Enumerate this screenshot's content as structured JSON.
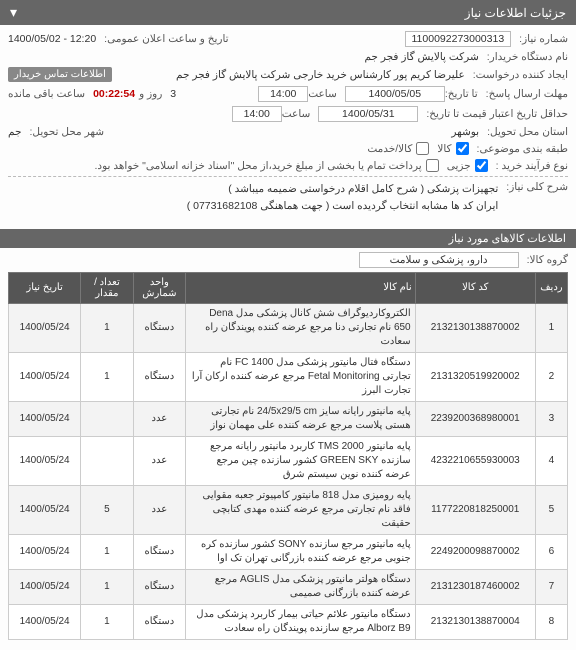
{
  "header": {
    "title": "جزئیات اطلاعات نیاز",
    "collapse_glyph": "▾"
  },
  "form": {
    "need_number_label": "شماره نیاز:",
    "need_number": "1100092273000313",
    "public_datetime_label": "تاریخ و ساعت اعلان عمومی:",
    "public_datetime": "1400/05/02 - 12:20",
    "buyer_label": "نام دستگاه خریدار:",
    "buyer": "شرکت پالایش گاز فجر جم",
    "requester_label": "ایجاد کننده درخواست:",
    "requester": "علیرضا کریم پور کارشناس خرید خارجی شرکت پالایش گاز فجر جم",
    "buyer_contact_badge": "اطلاعات تماس خریدار",
    "reply_deadline_label": "مهلت ارسال پاسخ:",
    "reply_deadline_date_label": "تا تاریخ:",
    "reply_deadline_date": "1400/05/05",
    "hour_label": "ساعت",
    "reply_deadline_hour": "14:00",
    "days_label": "روز و",
    "days": "3",
    "remain_label": "ساعت باقی مانده",
    "remain_timer": "00:22:54",
    "valid_min_label": "حداقل تاریخ اعتبار قیمت تا تاریخ:",
    "valid_min_date": "1400/05/31",
    "valid_min_hour": "14:00",
    "deliver_province_label": "استان محل تحویل:",
    "deliver_province": "بوشهر",
    "deliver_city_label": "شهر محل تحویل:",
    "deliver_city": "جم",
    "subject_label": "طبقه بندی موضوعی:",
    "subject_service_label": "کالا/خدمت",
    "subject_service_checked": false,
    "subject_goods_label": "کالا",
    "subject_goods_checked": true,
    "buy_type_label": "نوع فرآیند خرید :",
    "buy_type_partial_label": "پرداخت تمام یا بخشی از مبلغ خرید،از محل \"اسناد خزانه اسلامی\" خواهد بود.",
    "buy_type_partial_checked": false,
    "buy_type_partial2_label": "جزیی",
    "buy_type_partial2_checked": true,
    "desc_label": "شرح کلی نیاز:",
    "desc_line1": "تجهیزات پزشکی ( شرح کامل اقلام درخواستی ضمیمه میباشد )",
    "desc_line2": "ایران کد ها مشابه انتخاب گردیده است ( جهت هماهنگی  07731682108 )",
    "group_label": "گروه کالا:",
    "group_value": "دارو، پزشکی و سلامت"
  },
  "items_section_title": "اطلاعات کالاهای مورد نیاز",
  "table": {
    "columns": [
      "ردیف",
      "کد کالا",
      "نام کالا",
      "واحد شمارش",
      "تعداد / مقدار",
      "تاریخ نیاز"
    ],
    "rows": [
      {
        "idx": "1",
        "code": "2132130138870002",
        "name": "الکتروکاردیوگراف شش کانال پزشکی مدل Dena 650 نام تجارتی دنا مرجع عرضه کننده پویندگان راه سعادت",
        "unit": "دستگاه",
        "count": "1",
        "date": "1400/05/24"
      },
      {
        "idx": "2",
        "code": "2131320519920002",
        "name": "دستگاه فتال مانیتور پزشکی مدل FC 1400 نام تجارتی Fetal Monitoring مرجع عرضه کننده ارکان آرا تجارت البرز",
        "unit": "دستگاه",
        "count": "1",
        "date": "1400/05/24"
      },
      {
        "idx": "3",
        "code": "2239200368980001",
        "name": "پایه مانیتور رایانه سایز 24/5x29/5 cm نام تجارتی هستی پلاست مرجع عرضه کننده علی مهمان نواز",
        "unit": "عدد",
        "count": "",
        "date": "1400/05/24"
      },
      {
        "idx": "4",
        "code": "4232210655930003",
        "name": "پایه مانیتور TMS 2000 کاربرد مانیتور رایانه مرجع سازنده GREEN SKY کشور سازنده چین مرجع عرضه کننده نوین سیستم شرق",
        "unit": "عدد",
        "count": "",
        "date": "1400/05/24"
      },
      {
        "idx": "5",
        "code": "1177220818250001",
        "name": "پایه رومیزی مدل 818 مانیتور کامپیوتر جعبه مقوایی فاقد نام تجارتی مرجع عرضه کننده مهدی کتابچی حقیقت",
        "unit": "عدد",
        "count": "5",
        "date": "1400/05/24"
      },
      {
        "idx": "6",
        "code": "2249200098870002",
        "name": "پایه مانیتور مرجع سازنده SONY کشور سازنده کره جنوبی مرجع عرضه کننده بازرگانی تهران تک اوا",
        "unit": "دستگاه",
        "count": "1",
        "date": "1400/05/24"
      },
      {
        "idx": "7",
        "code": "2131230187460002",
        "name": "دستگاه هولتر مانیتور پزشکی مدل AGLIS مرجع عرضه کننده بازرگانی صمیمی",
        "unit": "دستگاه",
        "count": "1",
        "date": "1400/05/24"
      },
      {
        "idx": "8",
        "code": "2132130138870004",
        "name": "دستگاه مانیتور علائم حیاتی بیمار کاربرد پزشکی مدل Alborz B9 مرجع سازنده پویندگان راه سعادت",
        "unit": "دستگاه",
        "count": "1",
        "date": "1400/05/24"
      }
    ]
  }
}
